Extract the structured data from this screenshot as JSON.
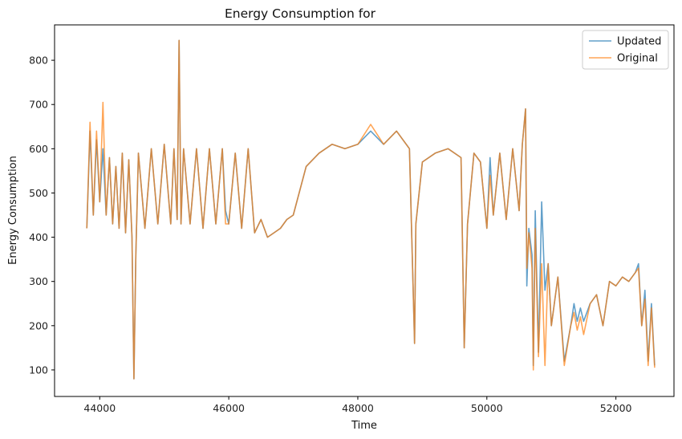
{
  "chart_data": {
    "type": "line",
    "title": "Energy Consumption for",
    "xlabel": "Time",
    "ylabel": "Energy Consumption",
    "xlim": [
      43300,
      52900
    ],
    "ylim": [
      40,
      880
    ],
    "xticks": [
      44000,
      46000,
      48000,
      50000,
      52000
    ],
    "yticks": [
      100,
      200,
      300,
      400,
      500,
      600,
      700,
      800
    ],
    "grid": false,
    "legend": "top-right",
    "series": [
      {
        "name": "Updated",
        "color": "#1f77b4",
        "opacity": 0.7,
        "x": [
          43800,
          43850,
          43900,
          43950,
          44000,
          44050,
          44100,
          44150,
          44200,
          44250,
          44300,
          44350,
          44400,
          44450,
          44500,
          44530,
          44560,
          44600,
          44700,
          44800,
          44900,
          45000,
          45100,
          45150,
          45200,
          45230,
          45260,
          45300,
          45400,
          45500,
          45600,
          45700,
          45800,
          45900,
          45950,
          46000,
          46100,
          46200,
          46300,
          46400,
          46500,
          46600,
          46700,
          46800,
          46900,
          47000,
          47200,
          47400,
          47600,
          47800,
          48000,
          48200,
          48400,
          48600,
          48800,
          48880,
          48900,
          49000,
          49200,
          49400,
          49600,
          49650,
          49700,
          49800,
          49900,
          50000,
          50050,
          50100,
          50200,
          50300,
          50400,
          50500,
          50550,
          50600,
          50620,
          50650,
          50700,
          50720,
          50750,
          50800,
          50850,
          50900,
          50950,
          51000,
          51100,
          51200,
          51300,
          51350,
          51400,
          51450,
          51500,
          51600,
          51700,
          51800,
          51900,
          52000,
          52100,
          52200,
          52300,
          52350,
          52400,
          52450,
          52500,
          52550,
          52600
        ],
        "y": [
          420,
          640,
          450,
          620,
          480,
          600,
          450,
          580,
          430,
          560,
          420,
          590,
          410,
          575,
          400,
          80,
          360,
          590,
          420,
          600,
          430,
          610,
          430,
          600,
          440,
          845,
          430,
          600,
          430,
          600,
          420,
          600,
          430,
          600,
          460,
          430,
          590,
          420,
          600,
          410,
          440,
          400,
          410,
          420,
          440,
          450,
          560,
          590,
          610,
          600,
          610,
          640,
          610,
          640,
          600,
          160,
          430,
          570,
          590,
          600,
          580,
          150,
          430,
          590,
          570,
          420,
          580,
          450,
          590,
          440,
          600,
          460,
          610,
          690,
          290,
          420,
          360,
          110,
          460,
          140,
          480,
          280,
          340,
          200,
          310,
          120,
          200,
          250,
          210,
          240,
          210,
          250,
          270,
          200,
          300,
          290,
          310,
          300,
          320,
          340,
          200,
          280,
          120,
          250,
          110
        ]
      },
      {
        "name": "Original",
        "color": "#ff7f0e",
        "opacity": 0.7,
        "x": [
          43800,
          43850,
          43900,
          43950,
          44000,
          44050,
          44100,
          44150,
          44200,
          44250,
          44300,
          44350,
          44400,
          44450,
          44500,
          44530,
          44560,
          44600,
          44700,
          44800,
          44900,
          45000,
          45100,
          45150,
          45200,
          45230,
          45260,
          45300,
          45400,
          45500,
          45600,
          45700,
          45800,
          45900,
          45950,
          46000,
          46100,
          46200,
          46300,
          46400,
          46500,
          46600,
          46700,
          46800,
          46900,
          47000,
          47200,
          47400,
          47600,
          47800,
          48000,
          48200,
          48400,
          48600,
          48800,
          48880,
          48900,
          49000,
          49200,
          49400,
          49600,
          49650,
          49700,
          49800,
          49900,
          50000,
          50050,
          50100,
          50200,
          50300,
          50400,
          50500,
          50550,
          50600,
          50620,
          50650,
          50700,
          50720,
          50750,
          50800,
          50850,
          50900,
          50950,
          51000,
          51100,
          51200,
          51300,
          51350,
          51400,
          51450,
          51500,
          51600,
          51700,
          51800,
          51900,
          52000,
          52100,
          52200,
          52300,
          52350,
          52400,
          52450,
          52500,
          52550,
          52600
        ],
        "y": [
          420,
          660,
          450,
          640,
          480,
          705,
          450,
          580,
          430,
          560,
          420,
          590,
          410,
          575,
          400,
          80,
          360,
          590,
          420,
          600,
          430,
          610,
          430,
          600,
          440,
          845,
          430,
          600,
          430,
          600,
          420,
          600,
          430,
          600,
          430,
          430,
          590,
          420,
          600,
          410,
          440,
          400,
          410,
          420,
          440,
          450,
          560,
          590,
          610,
          600,
          610,
          655,
          610,
          640,
          600,
          160,
          430,
          570,
          590,
          600,
          580,
          150,
          430,
          590,
          570,
          420,
          540,
          450,
          590,
          440,
          600,
          460,
          610,
          690,
          330,
          410,
          330,
          100,
          420,
          130,
          340,
          110,
          340,
          200,
          310,
          110,
          200,
          230,
          190,
          220,
          180,
          250,
          270,
          200,
          300,
          290,
          310,
          300,
          320,
          330,
          200,
          260,
          110,
          240,
          105
        ]
      }
    ]
  }
}
